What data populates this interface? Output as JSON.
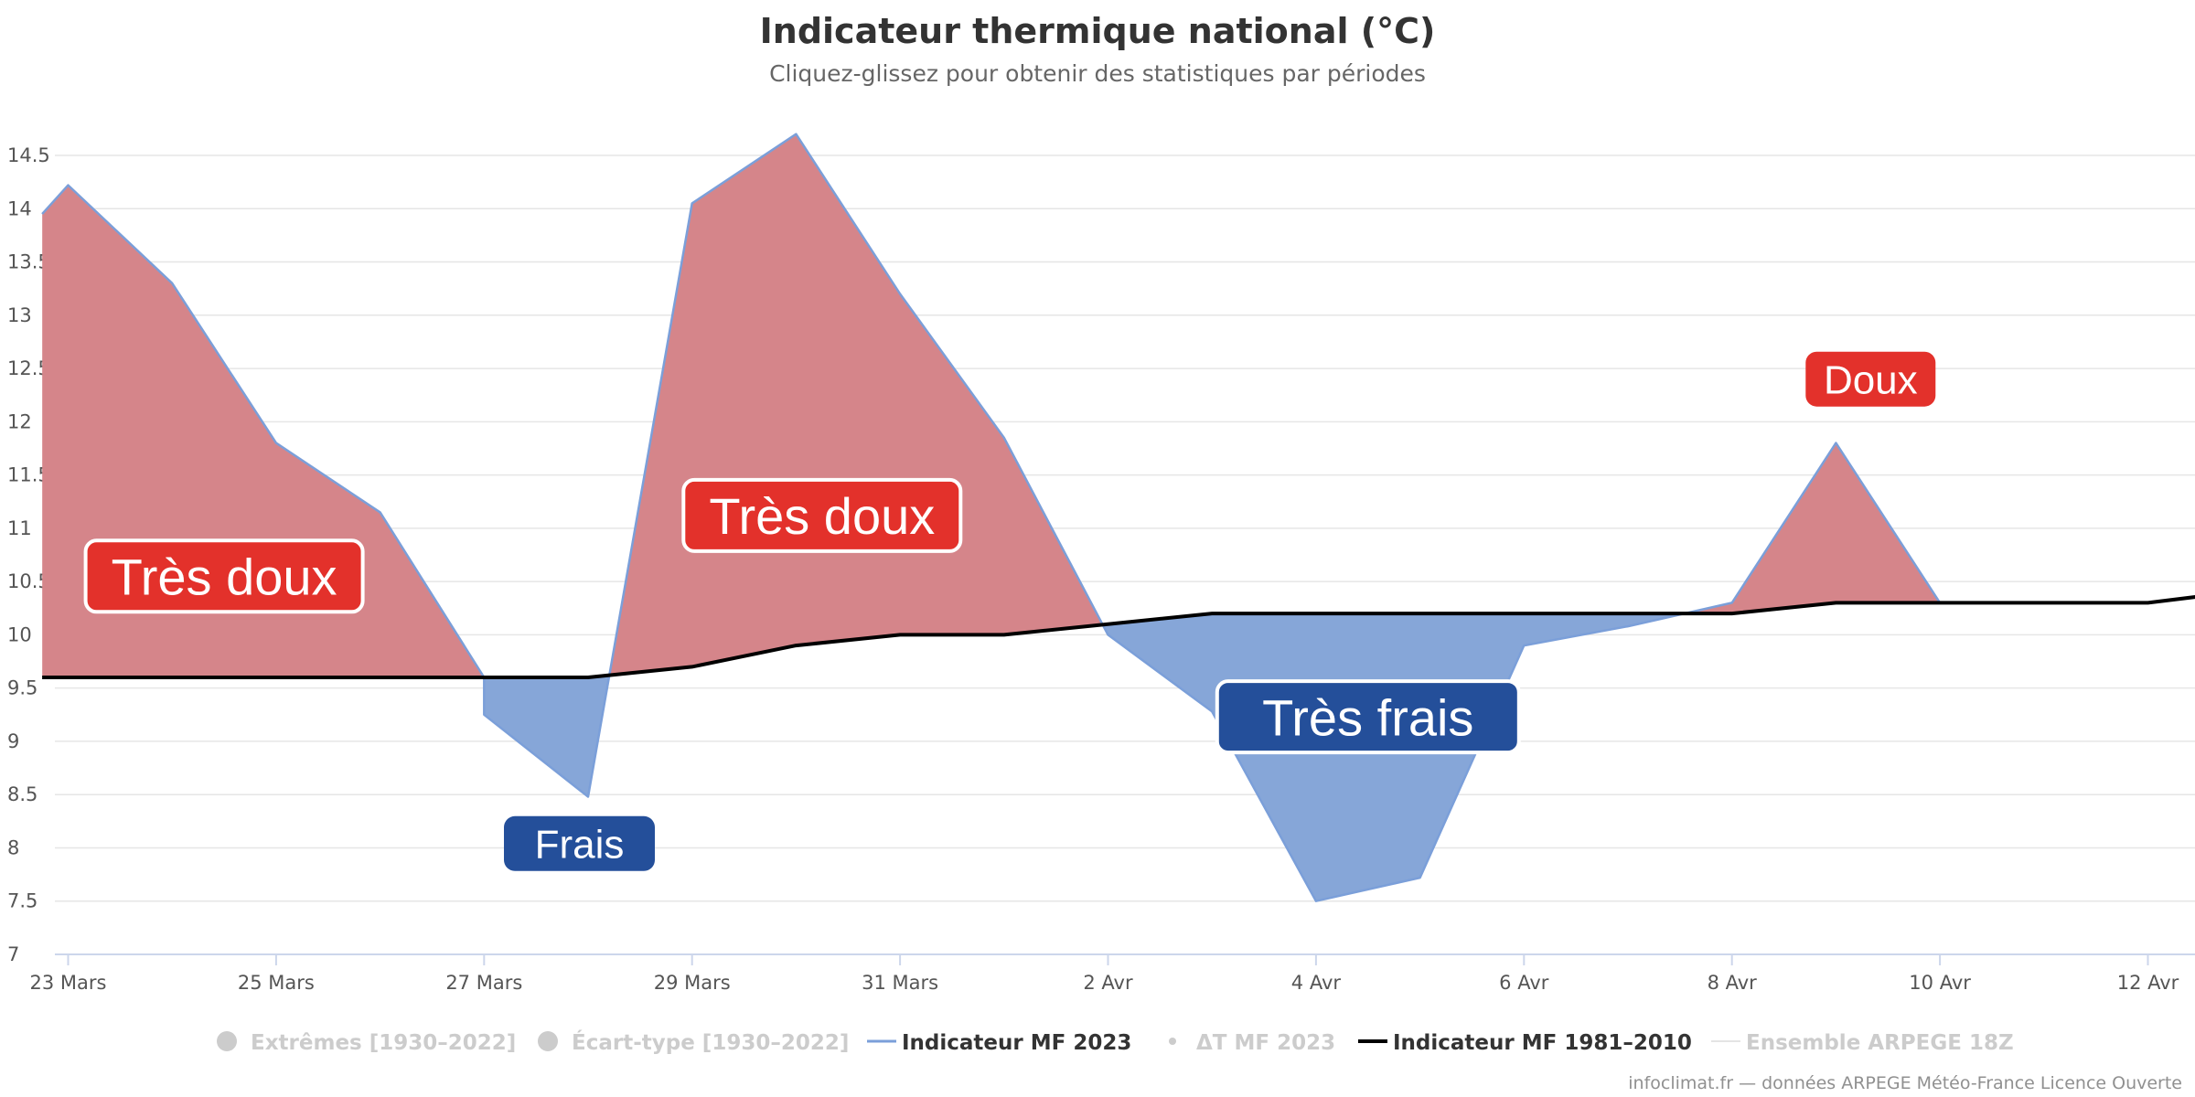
{
  "colors": {
    "warm": "#e3312b",
    "warm_area": "#d5858a",
    "cold": "#244f9a",
    "cold_area": "#86a6d8",
    "series_line": "#7b9fd9",
    "normal_line": "#000000",
    "legend_hidden": "#cccccc"
  },
  "chart_data": {
    "type": "area",
    "title": "Indicateur thermique national (°C)",
    "subtitle": "Cliquez-glissez pour obtenir des statistiques par périodes",
    "ylim": [
      7,
      14.8
    ],
    "yticks": [
      7,
      7.5,
      8,
      8.5,
      9,
      9.5,
      10,
      10.5,
      11,
      11.5,
      12,
      12.5,
      13,
      13.5,
      14,
      14.5
    ],
    "xlim": [
      "2023-03-23",
      "2023-04-12T12:00"
    ],
    "xticks": [
      {
        "date": "2023-03-23",
        "label": "23 Mars"
      },
      {
        "date": "2023-03-25",
        "label": "25 Mars"
      },
      {
        "date": "2023-03-27",
        "label": "27 Mars"
      },
      {
        "date": "2023-03-29",
        "label": "29 Mars"
      },
      {
        "date": "2023-03-31",
        "label": "31 Mars"
      },
      {
        "date": "2023-04-02",
        "label": "2 Avr"
      },
      {
        "date": "2023-04-04",
        "label": "4 Avr"
      },
      {
        "date": "2023-04-06",
        "label": "6 Avr"
      },
      {
        "date": "2023-04-08",
        "label": "8 Avr"
      },
      {
        "date": "2023-04-10",
        "label": "10 Avr"
      },
      {
        "date": "2023-04-12",
        "label": "12 Avr"
      }
    ],
    "grid": true,
    "series": [
      {
        "name": "Indicateur MF 2023",
        "points": [
          {
            "x": "2023-03-22T18:00",
            "y": 13.95
          },
          {
            "x": "2023-03-23",
            "y": 14.22
          },
          {
            "x": "2023-03-24",
            "y": 13.3
          },
          {
            "x": "2023-03-25",
            "y": 11.8
          },
          {
            "x": "2023-03-26",
            "y": 11.15
          },
          {
            "x": "2023-03-27",
            "y": 9.6
          },
          {
            "x": "2023-03-27",
            "y": 9.25
          },
          {
            "x": "2023-03-28",
            "y": 8.48
          },
          {
            "x": "2023-03-29",
            "y": 14.05
          },
          {
            "x": "2023-03-30",
            "y": 14.7
          },
          {
            "x": "2023-03-31",
            "y": 13.2
          },
          {
            "x": "2023-04-01",
            "y": 11.85
          },
          {
            "x": "2023-04-02",
            "y": 10.0
          },
          {
            "x": "2023-04-03",
            "y": 9.28
          },
          {
            "x": "2023-04-04",
            "y": 7.5
          },
          {
            "x": "2023-04-05",
            "y": 7.72
          },
          {
            "x": "2023-04-06",
            "y": 9.9
          },
          {
            "x": "2023-04-07",
            "y": 10.08
          },
          {
            "x": "2023-04-08",
            "y": 10.3
          },
          {
            "x": "2023-04-09",
            "y": 11.8
          },
          {
            "x": "2023-04-10",
            "y": 10.3
          }
        ]
      },
      {
        "name": "Indicateur MF 1981–2010",
        "points": [
          {
            "x": "2023-03-22T18:00",
            "y": 9.6
          },
          {
            "x": "2023-03-23",
            "y": 9.6
          },
          {
            "x": "2023-03-24",
            "y": 9.6
          },
          {
            "x": "2023-03-25",
            "y": 9.6
          },
          {
            "x": "2023-03-26",
            "y": 9.6
          },
          {
            "x": "2023-03-27",
            "y": 9.6
          },
          {
            "x": "2023-03-28",
            "y": 9.6
          },
          {
            "x": "2023-03-29",
            "y": 9.7
          },
          {
            "x": "2023-03-30",
            "y": 9.9
          },
          {
            "x": "2023-03-31",
            "y": 10.0
          },
          {
            "x": "2023-04-01",
            "y": 10.0
          },
          {
            "x": "2023-04-02",
            "y": 10.1
          },
          {
            "x": "2023-04-03",
            "y": 10.2
          },
          {
            "x": "2023-04-04",
            "y": 10.2
          },
          {
            "x": "2023-04-05",
            "y": 10.2
          },
          {
            "x": "2023-04-06",
            "y": 10.2
          },
          {
            "x": "2023-04-07",
            "y": 10.2
          },
          {
            "x": "2023-04-08",
            "y": 10.2
          },
          {
            "x": "2023-04-09",
            "y": 10.3
          },
          {
            "x": "2023-04-10",
            "y": 10.3
          },
          {
            "x": "2023-04-11",
            "y": 10.3
          },
          {
            "x": "2023-04-12",
            "y": 10.3
          },
          {
            "x": "2023-04-12T12:00",
            "y": 10.36
          }
        ]
      }
    ],
    "annotations": [
      {
        "text": "Très doux",
        "kind": "warm",
        "x": "2023-03-24T12:00",
        "y": 10.55,
        "size": "large"
      },
      {
        "text": "Frais",
        "kind": "cold",
        "x": "2023-03-27T22:00",
        "y": 8.04,
        "size": "small"
      },
      {
        "text": "Très doux",
        "kind": "warm",
        "x": "2023-03-30T06:00",
        "y": 11.12,
        "size": "large"
      },
      {
        "text": "Très frais",
        "kind": "cold",
        "x": "2023-04-04T12:00",
        "y": 9.23,
        "size": "large"
      },
      {
        "text": "Doux",
        "kind": "warm",
        "x": "2023-04-09T08:00",
        "y": 12.4,
        "size": "small"
      }
    ]
  },
  "legend": [
    {
      "label": "Extrêmes [1930–2022]",
      "marker": "circle",
      "active": false
    },
    {
      "label": "Écart-type [1930–2022]",
      "marker": "circle",
      "active": false
    },
    {
      "label": "Indicateur MF 2023",
      "marker": "line-blue",
      "active": true
    },
    {
      "label": "ΔT MF 2023",
      "marker": "dot",
      "active": false
    },
    {
      "label": "Indicateur MF 1981–2010",
      "marker": "line-black",
      "active": true
    },
    {
      "label": "Ensemble ARPEGE 18Z",
      "marker": "line-light",
      "active": false
    }
  ],
  "credit": "infoclimat.fr — données ARPEGE Météo-France Licence Ouverte"
}
